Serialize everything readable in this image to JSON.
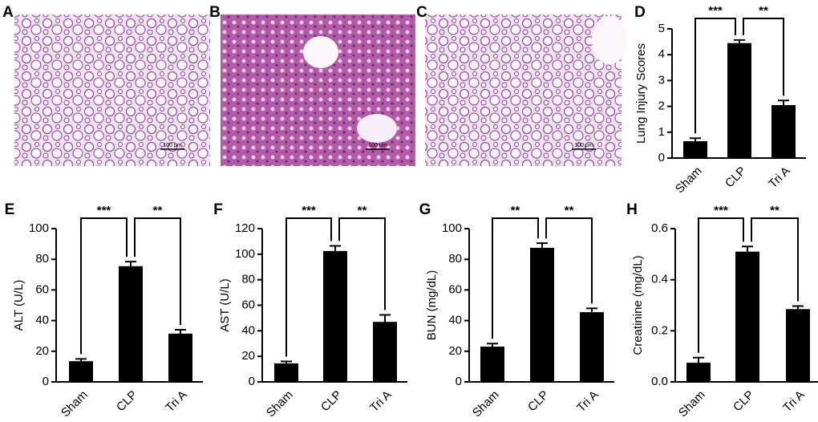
{
  "images": [
    {
      "label": "A",
      "scale_bar": "100 μm"
    },
    {
      "label": "B",
      "scale_bar": "100 μm"
    },
    {
      "label": "C",
      "scale_bar": "100 μm"
    }
  ],
  "chart_data": [
    {
      "type": "bar",
      "label": "D",
      "y_label": "Lung Injury Scores",
      "categories": [
        "Sham",
        "CLP",
        "Tri A"
      ],
      "values": [
        0.65,
        4.45,
        2.05
      ],
      "errors": [
        0.12,
        0.12,
        0.18
      ],
      "color": "#000000",
      "ylim": [
        0,
        5
      ],
      "yticks": [
        0,
        1,
        2,
        3,
        4,
        5
      ],
      "annotations": [
        "***",
        "**"
      ]
    },
    {
      "type": "bar",
      "label": "E",
      "y_label": "ALT (U/L)",
      "categories": [
        "Sham",
        "CLP",
        "Tri A"
      ],
      "values": [
        13.5,
        75.5,
        31.5
      ],
      "errors": [
        1.5,
        3,
        2.5
      ],
      "color": "#000000",
      "ylim": [
        0,
        100
      ],
      "yticks": [
        0,
        20,
        40,
        60,
        80,
        100
      ],
      "annotations": [
        "***",
        "**"
      ]
    },
    {
      "type": "bar",
      "label": "F",
      "y_label": "AST (U/L)",
      "categories": [
        "Sham",
        "CLP",
        "Tri A"
      ],
      "values": [
        14.5,
        102.5,
        47
      ],
      "errors": [
        1.5,
        4,
        5.5
      ],
      "color": "#000000",
      "ylim": [
        0,
        120
      ],
      "yticks": [
        0,
        20,
        40,
        60,
        80,
        100,
        120
      ],
      "annotations": [
        "***",
        "**"
      ]
    },
    {
      "type": "bar",
      "label": "G",
      "y_label": "BUN (mg/dL)",
      "categories": [
        "Sham",
        "CLP",
        "Tri A"
      ],
      "values": [
        23,
        87.5,
        45.5
      ],
      "errors": [
        2,
        3,
        2.5
      ],
      "color": "#000000",
      "ylim": [
        0,
        100
      ],
      "yticks": [
        0,
        20,
        40,
        60,
        80,
        100
      ],
      "annotations": [
        "**",
        "**"
      ]
    },
    {
      "type": "bar",
      "label": "H",
      "y_label": "Creatinine (mg/dL)",
      "categories": [
        "Sham",
        "CLP",
        "Tri A"
      ],
      "values": [
        0.075,
        0.51,
        0.285
      ],
      "errors": [
        0.02,
        0.02,
        0.012
      ],
      "color": "#000000",
      "ylim": [
        0,
        0.6
      ],
      "yticks": [
        {
          "value": 0,
          "label": "0.0"
        },
        0.2,
        0.4,
        0.6
      ],
      "annotations": [
        "***",
        "**"
      ]
    }
  ]
}
